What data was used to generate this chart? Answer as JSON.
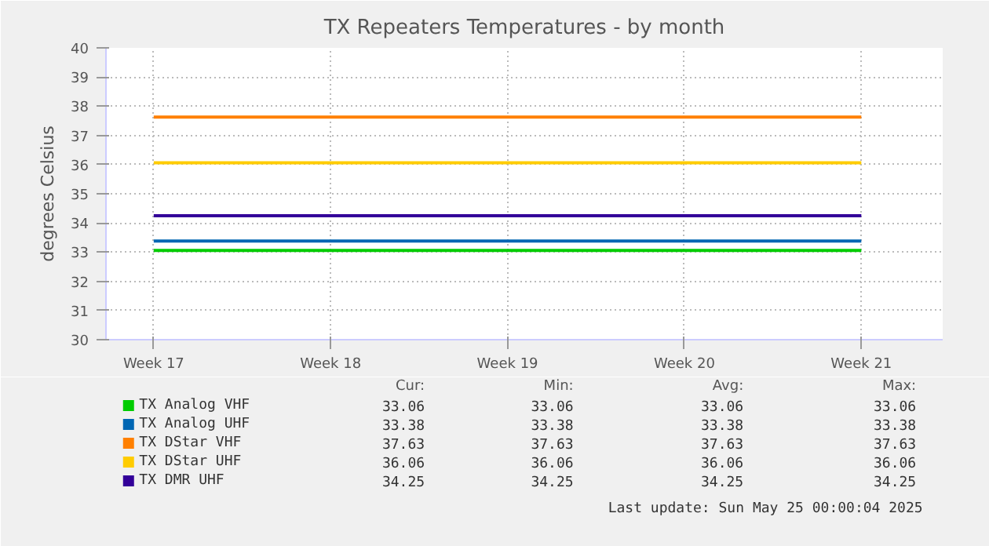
{
  "chart_data": {
    "type": "line",
    "title": "TX Repeaters Temperatures - by month",
    "ylabel": "degrees Celsius",
    "categories": [
      "Week 17",
      "Week 18",
      "Week 19",
      "Week 20",
      "Week 21"
    ],
    "ylim": [
      30,
      40
    ],
    "yticks": [
      30,
      31,
      32,
      33,
      34,
      35,
      36,
      37,
      38,
      39,
      40
    ],
    "grid": true,
    "legend": "bottom",
    "series": [
      {
        "name": "TX Analog VHF",
        "color": "#00cc00",
        "values": [
          33.06,
          33.06,
          33.06,
          33.06,
          33.06
        ]
      },
      {
        "name": "TX Analog UHF",
        "color": "#0066b3",
        "values": [
          33.38,
          33.38,
          33.38,
          33.38,
          33.38
        ]
      },
      {
        "name": "TX DStar VHF",
        "color": "#ff8000",
        "values": [
          37.63,
          37.63,
          37.63,
          37.63,
          37.63
        ]
      },
      {
        "name": "TX DStar UHF",
        "color": "#ffcc00",
        "values": [
          36.06,
          36.06,
          36.06,
          36.06,
          36.06
        ]
      },
      {
        "name": "TX DMR UHF",
        "color": "#330099",
        "values": [
          34.25,
          34.25,
          34.25,
          34.25,
          34.25
        ]
      }
    ],
    "annotations": [
      "Cur:",
      "Min:",
      "Avg:",
      "Max:",
      "33.06",
      "33.06",
      "33.06",
      "33.06",
      "33.38",
      "33.38",
      "33.38",
      "33.38",
      "37.63",
      "37.63",
      "37.63",
      "37.63",
      "36.06",
      "36.06",
      "36.06",
      "36.06",
      "34.25",
      "34.25",
      "34.25",
      "34.25",
      "Last update: Sun May 25 00:00:04 2025"
    ]
  }
}
